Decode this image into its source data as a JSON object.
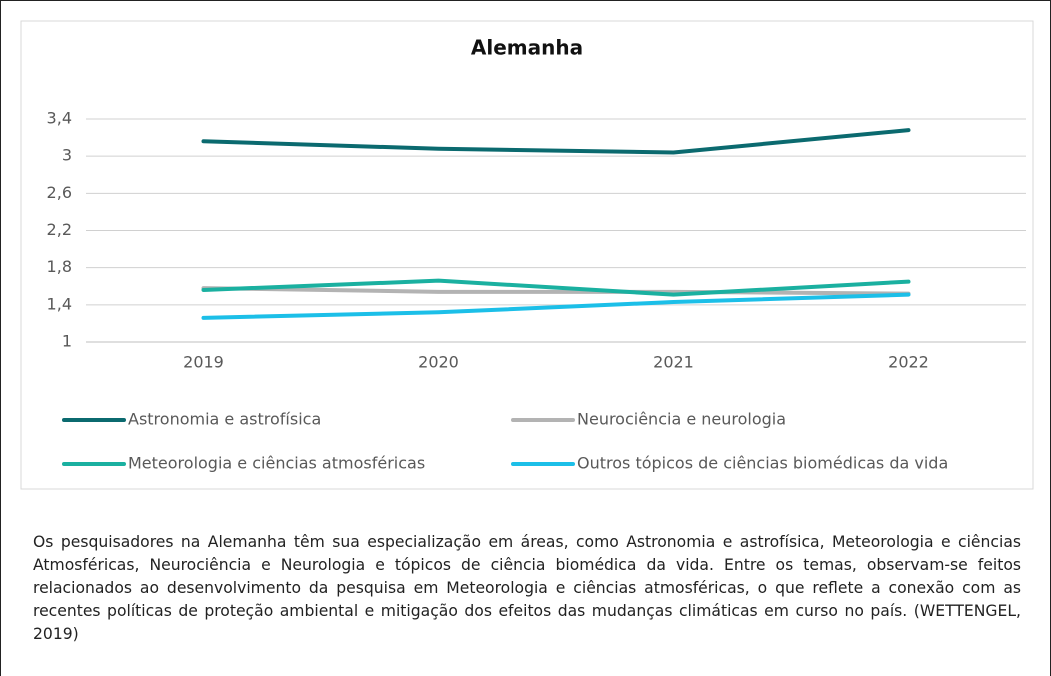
{
  "chart_data": {
    "type": "line",
    "title": "Alemanha",
    "categories": [
      "2019",
      "2020",
      "2021",
      "2022"
    ],
    "series": [
      {
        "name": "Astronomia e astrofísica",
        "color": "#0b6a6f",
        "values": [
          3.16,
          3.08,
          3.04,
          3.28
        ]
      },
      {
        "name": "Neurociência e neurologia",
        "color": "#b3b3b3",
        "values": [
          1.58,
          1.54,
          1.54,
          1.52
        ]
      },
      {
        "name": "Meteorologia e ciências atmosféricas",
        "color": "#1ab0a0",
        "values": [
          1.56,
          1.66,
          1.51,
          1.65
        ]
      },
      {
        "name": "Outros tópicos de ciências biomédicas da vida",
        "color": "#1cbfe8",
        "values": [
          1.26,
          1.32,
          1.43,
          1.51
        ]
      }
    ],
    "ylim": [
      1,
      3.4
    ],
    "yticks": [
      1,
      {
        "value": 1.4,
        "label": "1,4"
      },
      {
        "value": 1.8,
        "label": "1,8"
      },
      {
        "value": 2.2,
        "label": "2,2"
      },
      {
        "value": 2.6,
        "label": "2,6"
      },
      3,
      {
        "value": 3.4,
        "label": "3,4"
      }
    ],
    "grid": true
  },
  "caption": "Os pesquisadores na Alemanha têm sua especialização em áreas, como Astronomia e astrofísica, Meteorologia e ciências Atmosféricas, Neurociência e Neurologia e tópicos de ciência biomédica da vida. Entre os temas, observam-se feitos relacionados ao desenvolvimento da pesquisa em Meteorologia e ciências atmosféricas, o que reflete a conexão com as recentes políticas de proteção ambiental e mitigação dos efeitos das mudanças climáticas em curso no país. (WETTENGEL, 2019)"
}
